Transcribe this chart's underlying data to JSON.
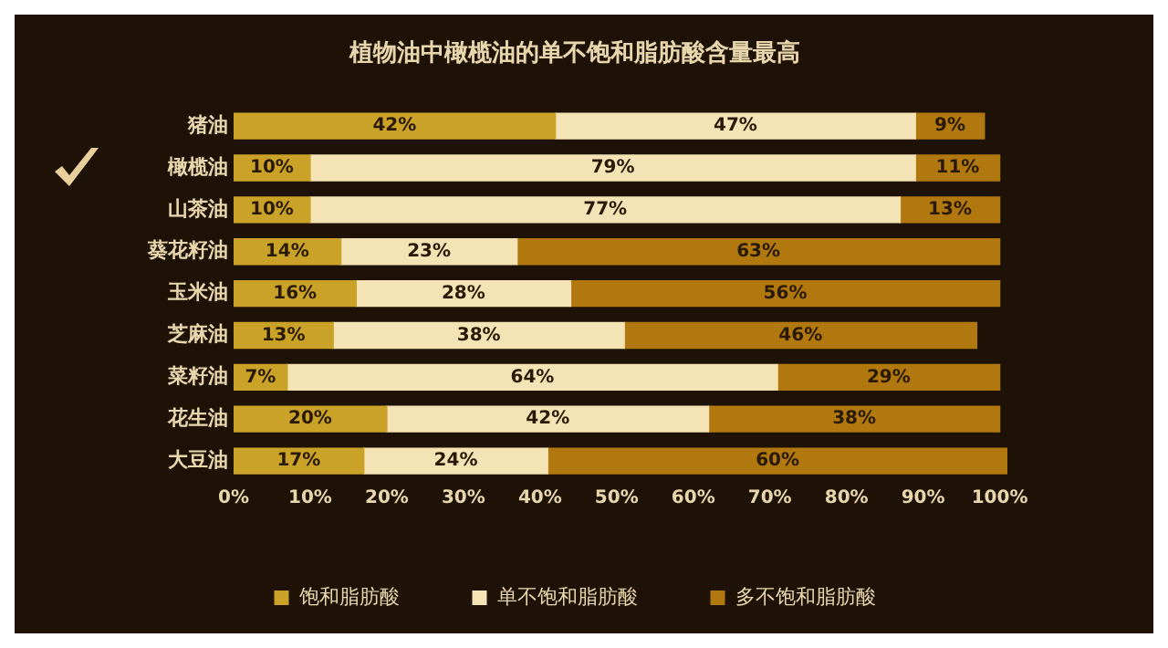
{
  "chart_data": {
    "type": "bar",
    "orientation": "horizontal",
    "stacked": true,
    "title": "植物油中橄榄油的单不饱和脂肪酸含量最高",
    "categories": [
      "猪油",
      "橄榄油",
      "山茶油",
      "葵花籽油",
      "玉米油",
      "芝麻油",
      "菜籽油",
      "花生油",
      "大豆油"
    ],
    "series": [
      {
        "name": "饱和脂肪酸",
        "color": "#c9a227",
        "values": [
          42,
          10,
          10,
          14,
          16,
          13,
          7,
          20,
          17
        ],
        "value_labels": [
          "42%",
          "10%",
          "10%",
          "14%",
          "16%",
          "13%",
          "7%",
          "20%",
          "17%"
        ]
      },
      {
        "name": "单不饱和脂肪酸",
        "color": "#f3e3b5",
        "values": [
          47,
          79,
          77,
          23,
          28,
          38,
          64,
          42,
          24
        ],
        "value_labels": [
          "47%",
          "79%",
          "77%",
          "23%",
          "28%",
          "38%",
          "64%",
          "42%",
          "24%"
        ]
      },
      {
        "name": "多不饱和脂肪酸",
        "color": "#b0780f",
        "values": [
          9,
          11,
          13,
          63,
          56,
          46,
          29,
          38,
          60
        ],
        "value_labels": [
          "9%",
          "11%",
          "13%",
          "63%",
          "56%",
          "46%",
          "29%",
          "38%",
          "60%"
        ]
      }
    ],
    "xlim": [
      0,
      101
    ],
    "xticks": [
      {
        "value": 0,
        "label": "0%"
      },
      {
        "value": 10,
        "label": "10%"
      },
      {
        "value": 20,
        "label": "20%"
      },
      {
        "value": 30,
        "label": "30%"
      },
      {
        "value": 40,
        "label": "40%"
      },
      {
        "value": 50,
        "label": "50%"
      },
      {
        "value": 60,
        "label": "60%"
      },
      {
        "value": 70,
        "label": "70%"
      },
      {
        "value": 80,
        "label": "80%"
      },
      {
        "value": 90,
        "label": "90%"
      },
      {
        "value": 100,
        "label": "100%"
      }
    ],
    "grid": false,
    "legend": "bottom"
  }
}
